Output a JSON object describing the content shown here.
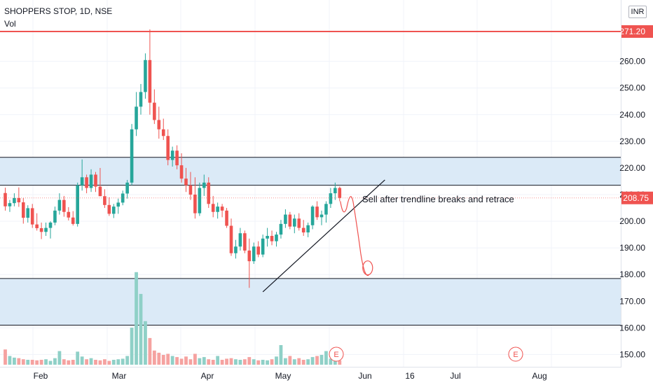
{
  "header": {
    "title": "SHOPPERS STOP, 1D, NSE",
    "volume_label": "Vol",
    "currency": "INR"
  },
  "annotation": "Sell after trendline breaks and retrace",
  "colors": {
    "up": "#26a69a",
    "down": "#ef5350",
    "up_vol": "#8fd0c7",
    "down_vol": "#f5a2a0",
    "zone_fill": "#dbeaf7",
    "zone_line": "#131722",
    "resistance": "#ef5350",
    "last_price_bg": "#ef5350"
  },
  "chart_data": {
    "type": "candlestick",
    "title": "SHOPPERS STOP, 1D, NSE",
    "x_ticks": [
      "Feb",
      "Mar",
      "Apr",
      "May",
      "Jun",
      "16",
      "Jul",
      "Aug"
    ],
    "x_tick_positions": [
      0.05,
      0.15,
      0.25,
      0.35,
      0.45,
      0.55,
      0.65,
      0.75
    ],
    "y_ticks": [
      150,
      160,
      170,
      180,
      190,
      200,
      210,
      220,
      230,
      240,
      250,
      260
    ],
    "ylim": [
      148,
      272
    ],
    "last_price": 208.75,
    "resistance_level": 271.2,
    "zones": [
      {
        "low": 213.5,
        "high": 224.0
      },
      {
        "low": 161.0,
        "high": 178.5
      }
    ],
    "trendline": [
      {
        "bar": 57,
        "price": 173.5
      },
      {
        "bar": 84,
        "price": 215.5
      }
    ],
    "earnings_markers": [
      {
        "bar": 78,
        "label": "E"
      },
      {
        "bar": 121,
        "label": "E"
      }
    ],
    "candles": [
      [
        210.6,
        212.6,
        204.0,
        205.6
      ],
      [
        205.6,
        208.0,
        203.5,
        206.8
      ],
      [
        206.8,
        210.5,
        205.6,
        208.7
      ],
      [
        208.7,
        212.7,
        205.4,
        207.1
      ],
      [
        207.1,
        208.7,
        199.1,
        201.3
      ],
      [
        201.3,
        206.0,
        199.5,
        204.9
      ],
      [
        204.9,
        206.5,
        197.5,
        198.8
      ],
      [
        198.8,
        203.0,
        196.5,
        197.4
      ],
      [
        197.4,
        199.5,
        193.3,
        196.0
      ],
      [
        196.0,
        199.5,
        194.5,
        197.5
      ],
      [
        197.5,
        200.0,
        193.5,
        199.5
      ],
      [
        199.5,
        205.5,
        198.5,
        204.0
      ],
      [
        204.0,
        210.5,
        202.5,
        208.0
      ],
      [
        208.0,
        209.5,
        201.7,
        203.5
      ],
      [
        203.5,
        205.3,
        200.3,
        201.4
      ],
      [
        201.4,
        203.8,
        198.4,
        199.0
      ],
      [
        199.0,
        214.5,
        198.0,
        213.5
      ],
      [
        213.5,
        223.2,
        211.5,
        216.5
      ],
      [
        216.5,
        217.5,
        210.5,
        212.5
      ],
      [
        212.5,
        219.5,
        211.0,
        217.5
      ],
      [
        217.5,
        218.5,
        211.0,
        213.0
      ],
      [
        213.0,
        220.0,
        210.0,
        209.4
      ],
      [
        209.4,
        212.0,
        205.0,
        206.1
      ],
      [
        206.1,
        209.0,
        202.0,
        202.8
      ],
      [
        202.8,
        206.5,
        201.2,
        205.5
      ],
      [
        205.5,
        208.5,
        202.8,
        207.0
      ],
      [
        207.0,
        211.5,
        206.0,
        210.4
      ],
      [
        210.4,
        215.5,
        208.5,
        214.5
      ],
      [
        214.5,
        236.5,
        213.5,
        234.5
      ],
      [
        234.5,
        248.5,
        232.0,
        243.0
      ],
      [
        243.0,
        251.5,
        240.0,
        248.5
      ],
      [
        248.5,
        263.0,
        246.0,
        260.5
      ],
      [
        260.5,
        272.0,
        240.0,
        244.5
      ],
      [
        244.5,
        249.5,
        236.5,
        238.0
      ],
      [
        238.0,
        243.0,
        231.0,
        234.5
      ],
      [
        234.5,
        238.5,
        230.5,
        232.0
      ],
      [
        232.0,
        234.5,
        221.0,
        223.0
      ],
      [
        223.0,
        228.0,
        220.5,
        226.5
      ],
      [
        226.5,
        228.5,
        219.5,
        221.0
      ],
      [
        221.0,
        225.5,
        214.5,
        216.0
      ],
      [
        216.0,
        220.0,
        211.0,
        213.5
      ],
      [
        213.5,
        218.5,
        208.0,
        210.0
      ],
      [
        210.0,
        216.5,
        201.0,
        203.0
      ],
      [
        203.0,
        214.5,
        202.0,
        212.5
      ],
      [
        212.5,
        217.5,
        209.5,
        214.5
      ],
      [
        214.5,
        216.5,
        205.0,
        206.5
      ],
      [
        206.5,
        209.5,
        201.5,
        203.5
      ],
      [
        203.5,
        207.0,
        201.0,
        205.5
      ],
      [
        205.5,
        206.5,
        201.5,
        204.0
      ],
      [
        204.0,
        205.0,
        197.5,
        198.3
      ],
      [
        198.3,
        201.0,
        187.0,
        188.0
      ],
      [
        188.0,
        193.0,
        186.0,
        190.5
      ],
      [
        190.5,
        197.5,
        189.0,
        195.5
      ],
      [
        195.5,
        196.5,
        188.0,
        189.0
      ],
      [
        189.0,
        193.5,
        175.0,
        185.0
      ],
      [
        185.0,
        192.0,
        184.0,
        190.5
      ],
      [
        190.5,
        192.5,
        186.5,
        187.5
      ],
      [
        187.5,
        195.0,
        186.5,
        193.5
      ],
      [
        193.5,
        197.5,
        190.5,
        194.5
      ],
      [
        194.5,
        196.5,
        191.0,
        192.5
      ],
      [
        192.5,
        196.0,
        190.5,
        195.0
      ],
      [
        195.0,
        200.5,
        193.5,
        199.0
      ],
      [
        199.0,
        204.5,
        197.5,
        202.5
      ],
      [
        202.5,
        203.5,
        197.0,
        198.0
      ],
      [
        198.0,
        202.5,
        195.5,
        201.0
      ],
      [
        201.0,
        203.0,
        196.5,
        197.5
      ],
      [
        197.5,
        200.5,
        194.5,
        195.8
      ],
      [
        195.8,
        199.5,
        194.0,
        198.5
      ],
      [
        198.5,
        206.0,
        197.0,
        205.5
      ],
      [
        205.5,
        207.5,
        200.5,
        201.5
      ],
      [
        201.5,
        204.0,
        198.5,
        202.5
      ],
      [
        202.5,
        207.5,
        199.5,
        206.5
      ],
      [
        206.5,
        212.5,
        205.0,
        210.5
      ],
      [
        210.5,
        214.5,
        208.0,
        212.5
      ],
      [
        212.5,
        213.0,
        207.5,
        208.75
      ]
    ],
    "volume_scale": [
      0,
      18
    ],
    "volume": [
      2.8,
      1.6,
      1.3,
      1.2,
      1.0,
      0.9,
      0.9,
      0.8,
      0.9,
      1.0,
      0.7,
      1.2,
      2.5,
      1.0,
      0.8,
      0.9,
      2.4,
      1.5,
      1.0,
      1.2,
      0.9,
      0.8,
      1.0,
      0.7,
      0.9,
      1.0,
      1.1,
      1.6,
      6.8,
      17.0,
      13.0,
      8.0,
      4.9,
      2.6,
      2.2,
      1.8,
      2.0,
      1.6,
      1.4,
      1.1,
      1.5,
      1.0,
      2.0,
      1.2,
      1.4,
      1.0,
      0.9,
      1.6,
      0.9,
      1.1,
      1.2,
      1.0,
      0.9,
      1.0,
      1.4,
      1.0,
      0.8,
      0.9,
      0.8,
      1.0,
      1.5,
      3.6,
      1.2,
      1.6,
      1.0,
      1.2,
      0.9,
      1.0,
      1.4,
      1.6,
      1.8,
      2.5,
      1.1,
      1.4,
      0.8
    ]
  }
}
